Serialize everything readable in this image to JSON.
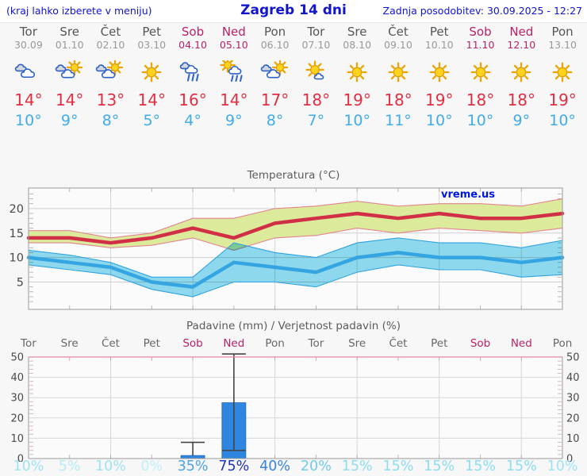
{
  "header": {
    "left": "(kraj lahko izberete v meniju)",
    "title": "Zagreb 14 dni",
    "updated": "Zadnja posodobitev: 30.09.2025 - 12:27"
  },
  "temp_section": {
    "title": "Temperatura (°C)",
    "watermark": "vreme.us"
  },
  "precip_section": {
    "title": "Padavine (mm) / Verjetnost padavin (%)"
  },
  "forecast": {
    "days": [
      {
        "name": "Tor",
        "date": "30.09",
        "weekend": false,
        "icon": "cloudy",
        "tmax": "14°",
        "tmin": "10°",
        "prob": "10%",
        "prob_color": "#9FE3F3"
      },
      {
        "name": "Sre",
        "date": "01.10",
        "weekend": false,
        "icon": "partly-cloudy",
        "tmax": "14°",
        "tmin": "9°",
        "prob": "5%",
        "prob_color": "#B7EBF7"
      },
      {
        "name": "Čet",
        "date": "02.10",
        "weekend": false,
        "icon": "partly-cloudy",
        "tmax": "13°",
        "tmin": "8°",
        "prob": "10%",
        "prob_color": "#9FE3F3"
      },
      {
        "name": "Pet",
        "date": "03.10",
        "weekend": false,
        "icon": "sunny",
        "tmax": "14°",
        "tmin": "5°",
        "prob": "0%",
        "prob_color": "#C2F0F9"
      },
      {
        "name": "Sob",
        "date": "04.10",
        "weekend": true,
        "icon": "rain",
        "tmax": "16°",
        "tmin": "4°",
        "prob": "35%",
        "prob_color": "#4CA4E4"
      },
      {
        "name": "Ned",
        "date": "05.10",
        "weekend": true,
        "icon": "sun-rain",
        "tmax": "14°",
        "tmin": "9°",
        "prob": "75%",
        "prob_color": "#2135B8"
      },
      {
        "name": "Pon",
        "date": "06.10",
        "weekend": false,
        "icon": "partly-cloudy",
        "tmax": "17°",
        "tmin": "8°",
        "prob": "40%",
        "prob_color": "#3A83DC"
      },
      {
        "name": "Tor",
        "date": "07.10",
        "weekend": false,
        "icon": "mostly-sunny",
        "tmax": "18°",
        "tmin": "7°",
        "prob": "20%",
        "prob_color": "#72CBEC"
      },
      {
        "name": "Sre",
        "date": "08.10",
        "weekend": false,
        "icon": "sunny",
        "tmax": "19°",
        "tmin": "10°",
        "prob": "15%",
        "prob_color": "#8CDCF2"
      },
      {
        "name": "Čet",
        "date": "09.10",
        "weekend": false,
        "icon": "sunny",
        "tmax": "18°",
        "tmin": "11°",
        "prob": "15%",
        "prob_color": "#8CDCF2"
      },
      {
        "name": "Pet",
        "date": "10.10",
        "weekend": false,
        "icon": "sunny",
        "tmax": "19°",
        "tmin": "10°",
        "prob": "15%",
        "prob_color": "#8CDCF2"
      },
      {
        "name": "Sob",
        "date": "11.10",
        "weekend": true,
        "icon": "sunny",
        "tmax": "18°",
        "tmin": "10°",
        "prob": "15%",
        "prob_color": "#8CDCF2"
      },
      {
        "name": "Ned",
        "date": "12.10",
        "weekend": true,
        "icon": "sunny",
        "tmax": "18°",
        "tmin": "9°",
        "prob": "15%",
        "prob_color": "#8CDCF2"
      },
      {
        "name": "Pon",
        "date": "13.10",
        "weekend": false,
        "icon": "sunny",
        "tmax": "19°",
        "tmin": "10°",
        "prob": "10%",
        "prob_color": "#9FE3F3"
      }
    ]
  },
  "chart_data": [
    {
      "type": "line",
      "title": "Temperatura (°C)",
      "categories": [
        "Tor 30.09",
        "Sre 01.10",
        "Čet 02.10",
        "Pet 03.10",
        "Sob 04.10",
        "Ned 05.10",
        "Pon 06.10",
        "Tor 07.10",
        "Sre 08.10",
        "Čet 09.10",
        "Pet 10.10",
        "Sob 11.10",
        "Ned 12.10",
        "Pon 13.10"
      ],
      "ylabel": "°C",
      "ylim": [
        0,
        24
      ],
      "yticks": [
        5,
        10,
        15,
        20
      ],
      "grid": true,
      "series": [
        {
          "name": "max-temp",
          "color": "#D12F45",
          "values": [
            14,
            14,
            13,
            14,
            16,
            14,
            17,
            18,
            19,
            18,
            19,
            18,
            18,
            19
          ]
        },
        {
          "name": "max-temp-range",
          "kind": "band",
          "fill": "#DCEA9C",
          "edge": "#E2858F",
          "upper": [
            15.5,
            15.5,
            14,
            15,
            18,
            18,
            20,
            20.5,
            21.5,
            20.5,
            21,
            21,
            20.5,
            22
          ],
          "lower": [
            13,
            13,
            12,
            12.5,
            14,
            11.5,
            14,
            14.5,
            16,
            15,
            16,
            15.5,
            15,
            16
          ]
        },
        {
          "name": "min-temp",
          "color": "#35A5E2",
          "values": [
            10,
            9,
            8,
            5,
            4,
            9,
            8,
            7,
            10,
            11,
            10,
            10,
            9,
            10
          ]
        },
        {
          "name": "min-temp-range",
          "kind": "band",
          "fill": "#8FDCF0",
          "edge": "#31A2DF",
          "upper": [
            11.5,
            10.5,
            9,
            6,
            6,
            13,
            11,
            10,
            13,
            14,
            13,
            13,
            12,
            13.5
          ],
          "lower": [
            8.5,
            7.5,
            6.5,
            3.5,
            2,
            5,
            5,
            4,
            7,
            8.5,
            7.5,
            7.5,
            6,
            6.5
          ]
        }
      ]
    },
    {
      "type": "bar",
      "title": "Padavine (mm) / Verjetnost padavin (%)",
      "categories": [
        "Tor",
        "Sre",
        "Čet",
        "Pet",
        "Sob",
        "Ned",
        "Pon",
        "Tor",
        "Sre",
        "Čet",
        "Pet",
        "Sob",
        "Ned",
        "Pon"
      ],
      "ylabel": "mm",
      "ylim": [
        0,
        50
      ],
      "yticks": [
        0,
        10,
        20,
        30,
        40,
        50
      ],
      "bar_color": "#2E86E0",
      "precip_mm": [
        0,
        0,
        0,
        0,
        1.5,
        27.5,
        0,
        0,
        0,
        0,
        0,
        0,
        0,
        0
      ],
      "whiskers": [
        {
          "day_index": 4,
          "low": 1.5,
          "high": 8,
          "caps": [
            "high"
          ]
        },
        {
          "day_index": 5,
          "low": 4,
          "high": 51.5,
          "caps": [
            "low",
            "high"
          ]
        }
      ],
      "probability_pct": [
        10,
        5,
        10,
        0,
        35,
        75,
        40,
        20,
        15,
        15,
        15,
        15,
        15,
        10
      ]
    }
  ]
}
